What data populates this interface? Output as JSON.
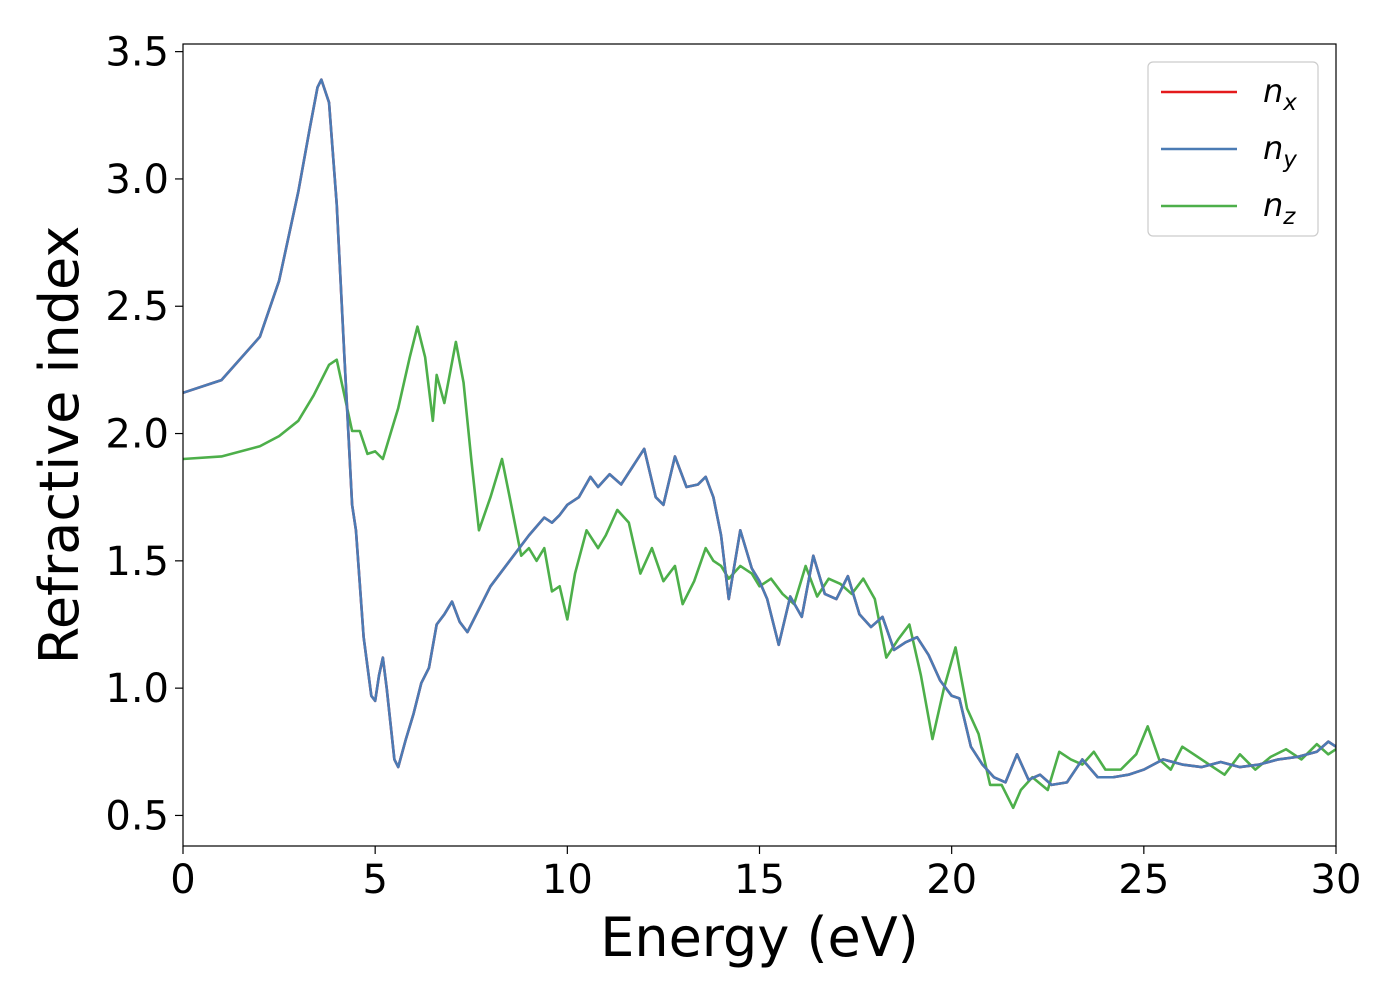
{
  "chart_data": {
    "type": "line",
    "xlabel": "Energy (eV)",
    "ylabel": "Refractive index",
    "xlim": [
      0,
      30
    ],
    "ylim": [
      0.38,
      3.53
    ],
    "xticks": [
      0,
      5,
      10,
      15,
      20,
      25,
      30
    ],
    "xtick_labels": [
      "0",
      "5",
      "10",
      "15",
      "20",
      "25",
      "30"
    ],
    "yticks": [
      0.5,
      1.0,
      1.5,
      2.0,
      2.5,
      3.0,
      3.5
    ],
    "ytick_labels": [
      "0.5",
      "1.0",
      "1.5",
      "2.0",
      "2.5",
      "3.0",
      "3.5"
    ],
    "grid": false,
    "legend_position": "top-right",
    "series": [
      {
        "name": "n_x",
        "label_base": "n",
        "label_sub": "x",
        "color": "#e41a1c",
        "x": [
          0,
          1,
          2,
          2.5,
          3,
          3.3,
          3.5,
          3.6,
          3.8,
          4.0,
          4.2,
          4.4,
          4.5,
          4.7,
          4.9,
          5.0,
          5.1,
          5.2,
          5.3,
          5.5,
          5.6,
          5.8,
          6.0,
          6.2,
          6.4,
          6.6,
          6.8,
          7.0,
          7.2,
          7.4,
          7.6,
          8.0,
          8.5,
          9.0,
          9.4,
          9.6,
          9.8,
          10.0,
          10.3,
          10.6,
          10.8,
          11.1,
          11.4,
          11.7,
          12.0,
          12.3,
          12.5,
          12.8,
          13.1,
          13.4,
          13.6,
          13.8,
          14.0,
          14.2,
          14.5,
          14.8,
          15.0,
          15.2,
          15.5,
          15.8,
          16.1,
          16.4,
          16.7,
          17.0,
          17.3,
          17.6,
          17.9,
          18.2,
          18.5,
          18.8,
          19.1,
          19.4,
          19.7,
          20.0,
          20.2,
          20.5,
          20.8,
          21.1,
          21.4,
          21.7,
          22.0,
          22.3,
          22.6,
          23.0,
          23.4,
          23.8,
          24.2,
          24.6,
          25.0,
          25.5,
          26.0,
          26.5,
          27.0,
          27.5,
          28.0,
          28.5,
          29.0,
          29.5,
          29.8,
          30.0
        ],
        "y": [
          2.16,
          2.21,
          2.38,
          2.6,
          2.95,
          3.2,
          3.36,
          3.39,
          3.3,
          2.9,
          2.3,
          1.72,
          1.62,
          1.2,
          0.97,
          0.95,
          1.05,
          1.12,
          1.0,
          0.72,
          0.69,
          0.8,
          0.9,
          1.02,
          1.08,
          1.25,
          1.29,
          1.34,
          1.26,
          1.22,
          1.28,
          1.4,
          1.5,
          1.6,
          1.67,
          1.65,
          1.68,
          1.72,
          1.75,
          1.83,
          1.79,
          1.84,
          1.8,
          1.87,
          1.94,
          1.75,
          1.72,
          1.91,
          1.79,
          1.8,
          1.83,
          1.75,
          1.6,
          1.35,
          1.62,
          1.47,
          1.42,
          1.35,
          1.17,
          1.36,
          1.28,
          1.52,
          1.37,
          1.35,
          1.44,
          1.29,
          1.24,
          1.28,
          1.15,
          1.18,
          1.2,
          1.13,
          1.03,
          0.97,
          0.96,
          0.77,
          0.7,
          0.65,
          0.63,
          0.74,
          0.64,
          0.66,
          0.62,
          0.63,
          0.72,
          0.65,
          0.65,
          0.66,
          0.68,
          0.72,
          0.7,
          0.69,
          0.71,
          0.69,
          0.7,
          0.72,
          0.73,
          0.75,
          0.79,
          0.77
        ]
      },
      {
        "name": "n_y",
        "label_base": "n",
        "label_sub": "y",
        "color": "#4b7bb4",
        "x": [
          0,
          1,
          2,
          2.5,
          3,
          3.3,
          3.5,
          3.6,
          3.8,
          4.0,
          4.2,
          4.4,
          4.5,
          4.7,
          4.9,
          5.0,
          5.1,
          5.2,
          5.3,
          5.5,
          5.6,
          5.8,
          6.0,
          6.2,
          6.4,
          6.6,
          6.8,
          7.0,
          7.2,
          7.4,
          7.6,
          8.0,
          8.5,
          9.0,
          9.4,
          9.6,
          9.8,
          10.0,
          10.3,
          10.6,
          10.8,
          11.1,
          11.4,
          11.7,
          12.0,
          12.3,
          12.5,
          12.8,
          13.1,
          13.4,
          13.6,
          13.8,
          14.0,
          14.2,
          14.5,
          14.8,
          15.0,
          15.2,
          15.5,
          15.8,
          16.1,
          16.4,
          16.7,
          17.0,
          17.3,
          17.6,
          17.9,
          18.2,
          18.5,
          18.8,
          19.1,
          19.4,
          19.7,
          20.0,
          20.2,
          20.5,
          20.8,
          21.1,
          21.4,
          21.7,
          22.0,
          22.3,
          22.6,
          23.0,
          23.4,
          23.8,
          24.2,
          24.6,
          25.0,
          25.5,
          26.0,
          26.5,
          27.0,
          27.5,
          28.0,
          28.5,
          29.0,
          29.5,
          29.8,
          30.0
        ],
        "y": [
          2.16,
          2.21,
          2.38,
          2.6,
          2.95,
          3.2,
          3.36,
          3.39,
          3.3,
          2.9,
          2.3,
          1.72,
          1.62,
          1.2,
          0.97,
          0.95,
          1.05,
          1.12,
          1.0,
          0.72,
          0.69,
          0.8,
          0.9,
          1.02,
          1.08,
          1.25,
          1.29,
          1.34,
          1.26,
          1.22,
          1.28,
          1.4,
          1.5,
          1.6,
          1.67,
          1.65,
          1.68,
          1.72,
          1.75,
          1.83,
          1.79,
          1.84,
          1.8,
          1.87,
          1.94,
          1.75,
          1.72,
          1.91,
          1.79,
          1.8,
          1.83,
          1.75,
          1.6,
          1.35,
          1.62,
          1.47,
          1.42,
          1.35,
          1.17,
          1.36,
          1.28,
          1.52,
          1.37,
          1.35,
          1.44,
          1.29,
          1.24,
          1.28,
          1.15,
          1.18,
          1.2,
          1.13,
          1.03,
          0.97,
          0.96,
          0.77,
          0.7,
          0.65,
          0.63,
          0.74,
          0.64,
          0.66,
          0.62,
          0.63,
          0.72,
          0.65,
          0.65,
          0.66,
          0.68,
          0.72,
          0.7,
          0.69,
          0.71,
          0.69,
          0.7,
          0.72,
          0.73,
          0.75,
          0.79,
          0.77
        ]
      },
      {
        "name": "n_z",
        "label_base": "n",
        "label_sub": "z",
        "color": "#4daf4a",
        "x": [
          0,
          1,
          2,
          2.5,
          3.0,
          3.4,
          3.8,
          4.0,
          4.2,
          4.4,
          4.6,
          4.8,
          5.0,
          5.2,
          5.4,
          5.6,
          5.9,
          6.1,
          6.3,
          6.5,
          6.6,
          6.8,
          6.9,
          7.1,
          7.3,
          7.5,
          7.7,
          8.0,
          8.3,
          8.5,
          8.8,
          9.0,
          9.2,
          9.4,
          9.6,
          9.8,
          10.0,
          10.2,
          10.5,
          10.8,
          11.0,
          11.3,
          11.6,
          11.9,
          12.2,
          12.5,
          12.8,
          13.0,
          13.3,
          13.6,
          13.8,
          14.0,
          14.2,
          14.5,
          14.8,
          15.0,
          15.3,
          15.6,
          15.9,
          16.2,
          16.5,
          16.8,
          17.1,
          17.4,
          17.7,
          18.0,
          18.3,
          18.6,
          18.9,
          19.2,
          19.5,
          19.8,
          20.1,
          20.4,
          20.7,
          21.0,
          21.3,
          21.6,
          21.8,
          22.1,
          22.5,
          22.8,
          23.1,
          23.4,
          23.7,
          24.0,
          24.4,
          24.8,
          25.1,
          25.4,
          25.7,
          26.0,
          26.3,
          26.7,
          27.1,
          27.5,
          27.9,
          28.3,
          28.7,
          29.1,
          29.5,
          29.8,
          30.0
        ],
        "y": [
          1.9,
          1.91,
          1.95,
          1.99,
          2.05,
          2.15,
          2.27,
          2.29,
          2.15,
          2.01,
          2.01,
          1.92,
          1.93,
          1.9,
          2.0,
          2.1,
          2.3,
          2.42,
          2.3,
          2.05,
          2.23,
          2.12,
          2.2,
          2.36,
          2.2,
          1.9,
          1.62,
          1.75,
          1.9,
          1.75,
          1.52,
          1.55,
          1.5,
          1.55,
          1.38,
          1.4,
          1.27,
          1.45,
          1.62,
          1.55,
          1.6,
          1.7,
          1.65,
          1.45,
          1.55,
          1.42,
          1.48,
          1.33,
          1.42,
          1.55,
          1.5,
          1.48,
          1.43,
          1.48,
          1.45,
          1.4,
          1.43,
          1.37,
          1.33,
          1.48,
          1.36,
          1.43,
          1.41,
          1.37,
          1.43,
          1.35,
          1.12,
          1.19,
          1.25,
          1.05,
          0.8,
          1.0,
          1.16,
          0.92,
          0.82,
          0.62,
          0.62,
          0.53,
          0.6,
          0.65,
          0.6,
          0.75,
          0.72,
          0.7,
          0.75,
          0.68,
          0.68,
          0.74,
          0.85,
          0.72,
          0.68,
          0.77,
          0.74,
          0.7,
          0.66,
          0.74,
          0.68,
          0.73,
          0.76,
          0.72,
          0.78,
          0.74,
          0.76
        ]
      }
    ]
  }
}
